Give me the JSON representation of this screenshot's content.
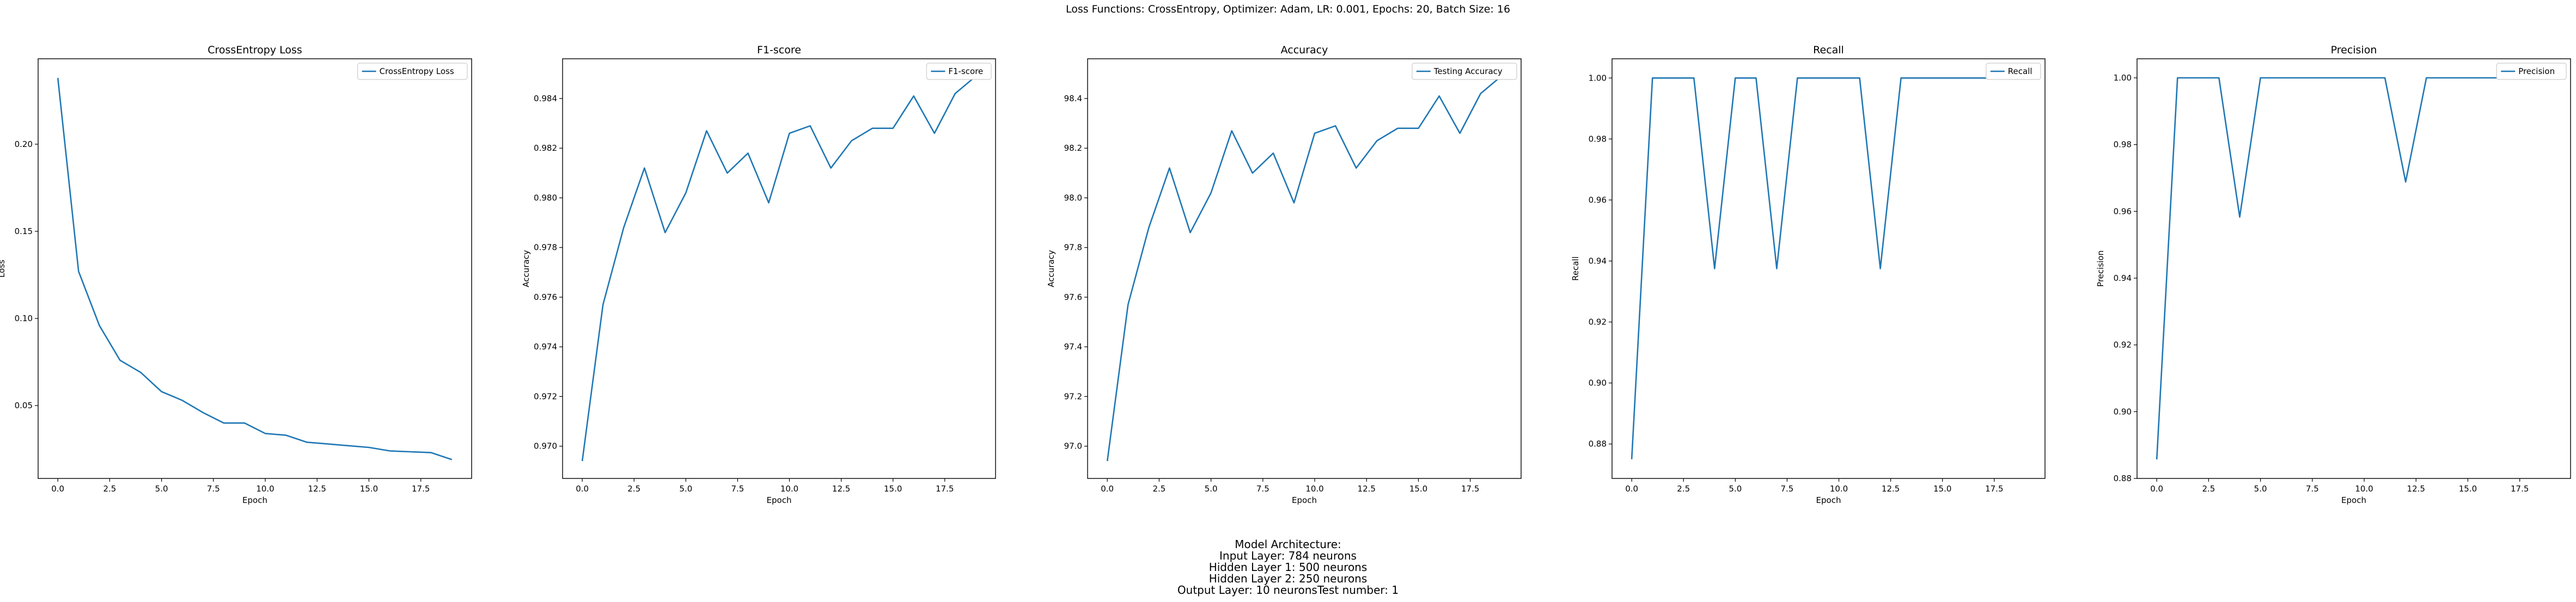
{
  "figure": {
    "suptitle": "Loss Functions: CrossEntropy, Optimizer: Adam, LR: 0.001, Epochs: 20, Batch Size: 16",
    "architecture_lines": [
      "Model Architecture:",
      "Input Layer: 784 neurons",
      "Hidden Layer 1: 500 neurons",
      "Hidden Layer 2: 250 neurons",
      "Output Layer: 10 neuronsTest number: 1"
    ],
    "line_color": "#1f77b4"
  },
  "chart_data": [
    {
      "type": "line",
      "title": "CrossEntropy Loss",
      "xlabel": "Epoch",
      "ylabel": "Loss",
      "legend_position": "top-right",
      "grid": false,
      "xlim": [
        -0.95,
        19.95
      ],
      "ylim": [
        0.0082,
        0.249
      ],
      "xticks": [
        0.0,
        2.5,
        5.0,
        7.5,
        10.0,
        12.5,
        15.0,
        17.5
      ],
      "xtick_labels": [
        "0.0",
        "2.5",
        "5.0",
        "7.5",
        "10.0",
        "12.5",
        "15.0",
        "17.5"
      ],
      "yticks": [
        0.05,
        0.1,
        0.15,
        0.2
      ],
      "ytick_labels": [
        "0.05",
        "0.10",
        "0.15",
        "0.20"
      ],
      "series": [
        {
          "name": "CrossEntropy Loss",
          "x": [
            0,
            1,
            2,
            3,
            4,
            5,
            6,
            7,
            8,
            9,
            10,
            11,
            12,
            13,
            14,
            15,
            16,
            17,
            18,
            19
          ],
          "values": [
            0.238,
            0.127,
            0.096,
            0.076,
            0.069,
            0.058,
            0.053,
            0.046,
            0.04,
            0.04,
            0.034,
            0.033,
            0.029,
            0.028,
            0.027,
            0.026,
            0.024,
            0.0235,
            0.023,
            0.019
          ]
        }
      ]
    },
    {
      "type": "line",
      "title": "F1-score",
      "xlabel": "Epoch",
      "ylabel": "Accuracy",
      "legend_position": "top-right",
      "grid": false,
      "xlim": [
        -0.95,
        19.95
      ],
      "ylim": [
        0.9687,
        0.9856
      ],
      "xticks": [
        0.0,
        2.5,
        5.0,
        7.5,
        10.0,
        12.5,
        15.0,
        17.5
      ],
      "xtick_labels": [
        "0.0",
        "2.5",
        "5.0",
        "7.5",
        "10.0",
        "12.5",
        "15.0",
        "17.5"
      ],
      "yticks": [
        0.97,
        0.972,
        0.974,
        0.976,
        0.978,
        0.98,
        0.982,
        0.984
      ],
      "ytick_labels": [
        "0.970",
        "0.972",
        "0.974",
        "0.976",
        "0.978",
        "0.980",
        "0.982",
        "0.984"
      ],
      "series": [
        {
          "name": "F1-score",
          "x": [
            0,
            1,
            2,
            3,
            4,
            5,
            6,
            7,
            8,
            9,
            10,
            11,
            12,
            13,
            14,
            15,
            16,
            17,
            18,
            19
          ],
          "values": [
            0.9694,
            0.9757,
            0.9788,
            0.9812,
            0.9786,
            0.9802,
            0.9827,
            0.981,
            0.9818,
            0.9798,
            0.9826,
            0.9829,
            0.9812,
            0.9823,
            0.9828,
            0.9828,
            0.9841,
            0.9826,
            0.9842,
            0.9849
          ]
        }
      ]
    },
    {
      "type": "line",
      "title": "Accuracy",
      "xlabel": "Epoch",
      "ylabel": "Accuracy",
      "legend_position": "top-right",
      "grid": false,
      "xlim": [
        -0.95,
        19.95
      ],
      "ylim": [
        96.87,
        98.56
      ],
      "xticks": [
        0.0,
        2.5,
        5.0,
        7.5,
        10.0,
        12.5,
        15.0,
        17.5
      ],
      "xtick_labels": [
        "0.0",
        "2.5",
        "5.0",
        "7.5",
        "10.0",
        "12.5",
        "15.0",
        "17.5"
      ],
      "yticks": [
        97.0,
        97.2,
        97.4,
        97.6,
        97.8,
        98.0,
        98.2,
        98.4
      ],
      "ytick_labels": [
        "97.0",
        "97.2",
        "97.4",
        "97.6",
        "97.8",
        "98.0",
        "98.2",
        "98.4"
      ],
      "series": [
        {
          "name": "Testing Accuracy",
          "x": [
            0,
            1,
            2,
            3,
            4,
            5,
            6,
            7,
            8,
            9,
            10,
            11,
            12,
            13,
            14,
            15,
            16,
            17,
            18,
            19
          ],
          "values": [
            96.94,
            97.57,
            97.88,
            98.12,
            97.86,
            98.02,
            98.27,
            98.1,
            98.18,
            97.98,
            98.26,
            98.29,
            98.12,
            98.23,
            98.28,
            98.28,
            98.41,
            98.26,
            98.42,
            98.49
          ]
        }
      ]
    },
    {
      "type": "line",
      "title": "Recall",
      "xlabel": "Epoch",
      "ylabel": "Recall",
      "legend_position": "top-right",
      "grid": false,
      "xlim": [
        -0.95,
        19.95
      ],
      "ylim": [
        0.8687,
        1.0063
      ],
      "xticks": [
        0.0,
        2.5,
        5.0,
        7.5,
        10.0,
        12.5,
        15.0,
        17.5
      ],
      "xtick_labels": [
        "0.0",
        "2.5",
        "5.0",
        "7.5",
        "10.0",
        "12.5",
        "15.0",
        "17.5"
      ],
      "yticks": [
        0.88,
        0.9,
        0.92,
        0.94,
        0.96,
        0.98,
        1.0
      ],
      "ytick_labels": [
        "0.88",
        "0.90",
        "0.92",
        "0.94",
        "0.96",
        "0.98",
        "1.00"
      ],
      "series": [
        {
          "name": "Recall",
          "x": [
            0,
            1,
            2,
            3,
            4,
            5,
            6,
            7,
            8,
            9,
            10,
            11,
            12,
            13,
            14,
            15,
            16,
            17,
            18,
            19
          ],
          "values": [
            0.875,
            1.0,
            1.0,
            1.0,
            0.9375,
            1.0,
            1.0,
            0.9375,
            1.0,
            1.0,
            1.0,
            1.0,
            0.9375,
            1.0,
            1.0,
            1.0,
            1.0,
            1.0,
            1.0,
            1.0
          ]
        }
      ]
    },
    {
      "type": "line",
      "title": "Precision",
      "xlabel": "Epoch",
      "ylabel": "Precision",
      "legend_position": "top-right",
      "grid": false,
      "xlim": [
        -0.95,
        19.95
      ],
      "ylim": [
        0.88,
        1.0057
      ],
      "xticks": [
        0.0,
        2.5,
        5.0,
        7.5,
        10.0,
        12.5,
        15.0,
        17.5
      ],
      "xtick_labels": [
        "0.0",
        "2.5",
        "5.0",
        "7.5",
        "10.0",
        "12.5",
        "15.0",
        "17.5"
      ],
      "yticks": [
        0.88,
        0.9,
        0.92,
        0.94,
        0.96,
        0.98,
        1.0
      ],
      "ytick_labels": [
        "0.88",
        "0.90",
        "0.92",
        "0.94",
        "0.96",
        "0.98",
        "1.00"
      ],
      "series": [
        {
          "name": "Precision",
          "x": [
            0,
            1,
            2,
            3,
            4,
            5,
            6,
            7,
            8,
            9,
            10,
            11,
            12,
            13,
            14,
            15,
            16,
            17,
            18,
            19
          ],
          "values": [
            0.8857,
            1.0,
            1.0,
            1.0,
            0.9583,
            1.0,
            1.0,
            1.0,
            1.0,
            1.0,
            1.0,
            1.0,
            0.9688,
            1.0,
            1.0,
            1.0,
            1.0,
            1.0,
            1.0,
            1.0
          ]
        }
      ]
    }
  ]
}
